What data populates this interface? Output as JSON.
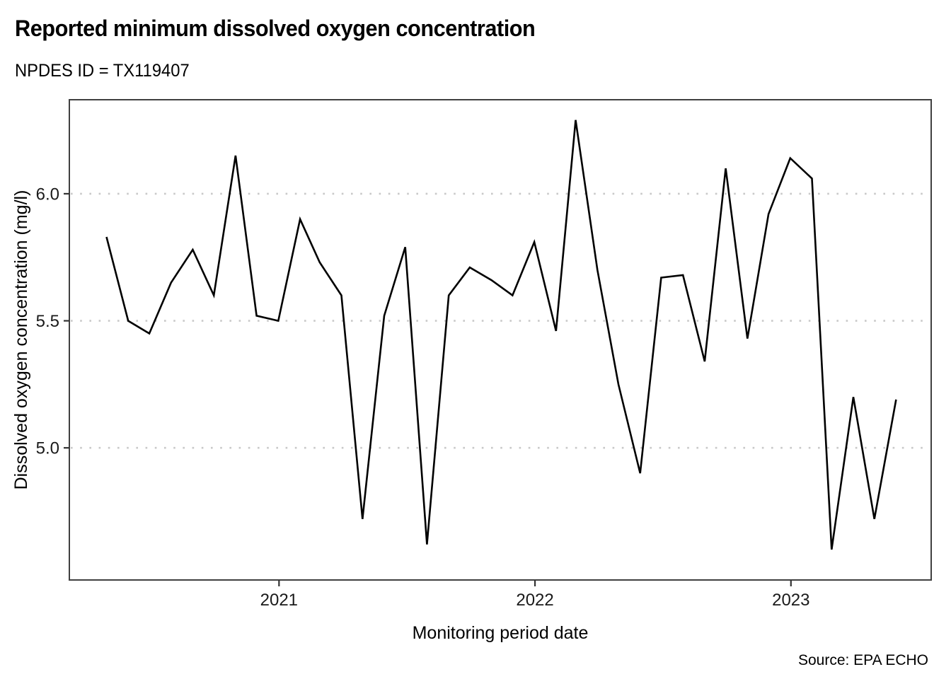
{
  "header": {
    "title": "Reported minimum dissolved oxygen concentration",
    "subtitle": "NPDES ID = TX119407"
  },
  "colors": {
    "line": "#000000",
    "grid": "#c9c9c9",
    "panel_border": "#404040",
    "tick": "#333333",
    "background": "#ffffff"
  },
  "chart_data": {
    "type": "line",
    "title": "Reported minimum dissolved oxygen concentration",
    "subtitle": "NPDES ID = TX119407",
    "xlabel": "Monitoring period date",
    "ylabel": "Dissolved oxygen concentration (mg/l)",
    "caption": "Source: EPA ECHO",
    "legend": "none",
    "grid": "horizontal-dotted",
    "ylim": [
      4.48,
      6.37
    ],
    "xlim": [
      "2020-03-08",
      "2023-07-20"
    ],
    "y_ticks": [
      5.0,
      5.5,
      6.0
    ],
    "x_ticks": [
      {
        "label": "2021",
        "date": "2021-01-01"
      },
      {
        "label": "2022",
        "date": "2022-01-01"
      },
      {
        "label": "2023",
        "date": "2023-01-01"
      }
    ],
    "series": [
      {
        "name": "Reported minimum dissolved oxygen concentration (mg/l)",
        "x": [
          "2020-04-30",
          "2020-05-31",
          "2020-06-30",
          "2020-07-31",
          "2020-08-31",
          "2020-09-30",
          "2020-10-31",
          "2020-11-30",
          "2020-12-31",
          "2021-01-31",
          "2021-02-28",
          "2021-03-31",
          "2021-04-30",
          "2021-05-31",
          "2021-06-30",
          "2021-07-31",
          "2021-08-31",
          "2021-09-30",
          "2021-10-31",
          "2021-11-30",
          "2021-12-31",
          "2022-01-31",
          "2022-02-28",
          "2022-03-31",
          "2022-04-30",
          "2022-05-31",
          "2022-06-30",
          "2022-07-31",
          "2022-08-31",
          "2022-09-30",
          "2022-10-31",
          "2022-11-30",
          "2022-12-31",
          "2023-01-31",
          "2023-02-28",
          "2023-03-31",
          "2023-04-30",
          "2023-05-31"
        ],
        "values": [
          5.83,
          5.5,
          5.45,
          5.65,
          5.78,
          5.6,
          6.15,
          5.52,
          5.5,
          5.9,
          5.73,
          5.6,
          4.72,
          5.52,
          5.79,
          4.62,
          5.6,
          5.71,
          5.66,
          5.6,
          5.81,
          5.46,
          6.29,
          5.7,
          5.25,
          4.9,
          5.67,
          5.68,
          5.34,
          6.1,
          5.43,
          5.92,
          6.14,
          6.06,
          4.6,
          5.2,
          4.72,
          5.19
        ]
      }
    ]
  }
}
